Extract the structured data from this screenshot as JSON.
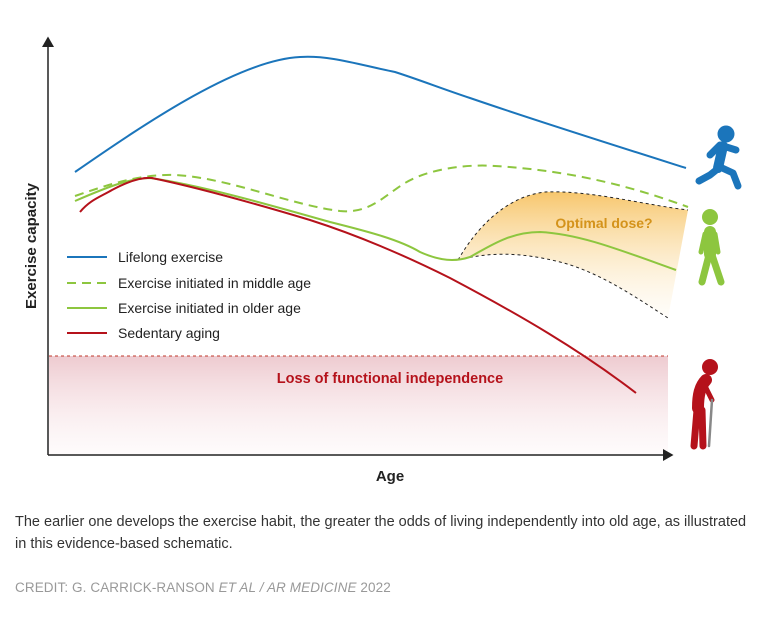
{
  "chart_data": {
    "type": "line",
    "xlabel": "Age",
    "ylabel": "Exercise capacity",
    "series": [
      {
        "name": "Lifelong exercise",
        "color": "#1b75bb",
        "style": "solid"
      },
      {
        "name": "Exercise initiated in middle age",
        "color": "#8dc63f",
        "style": "dashed"
      },
      {
        "name": "Exercise initiated in older age",
        "color": "#8dc63f",
        "style": "solid"
      },
      {
        "name": "Sedentary aging",
        "color": "#b5121b",
        "style": "solid"
      }
    ],
    "annotations": {
      "threshold_label": "Loss of functional independence",
      "optimal_dose_label": "Optimal dose?"
    },
    "icons": [
      "running-person-icon",
      "walking-person-icon",
      "elderly-person-with-cane-icon"
    ]
  },
  "caption": "The earlier one develops the exercise habit, the greater the odds of living independently into old age, as illustrated in this evidence-based schematic.",
  "credit": {
    "prefix": "CREDIT: G. CARRICK-RANSON ",
    "italic": "ET AL / AR MEDICINE",
    "suffix": " 2022"
  }
}
